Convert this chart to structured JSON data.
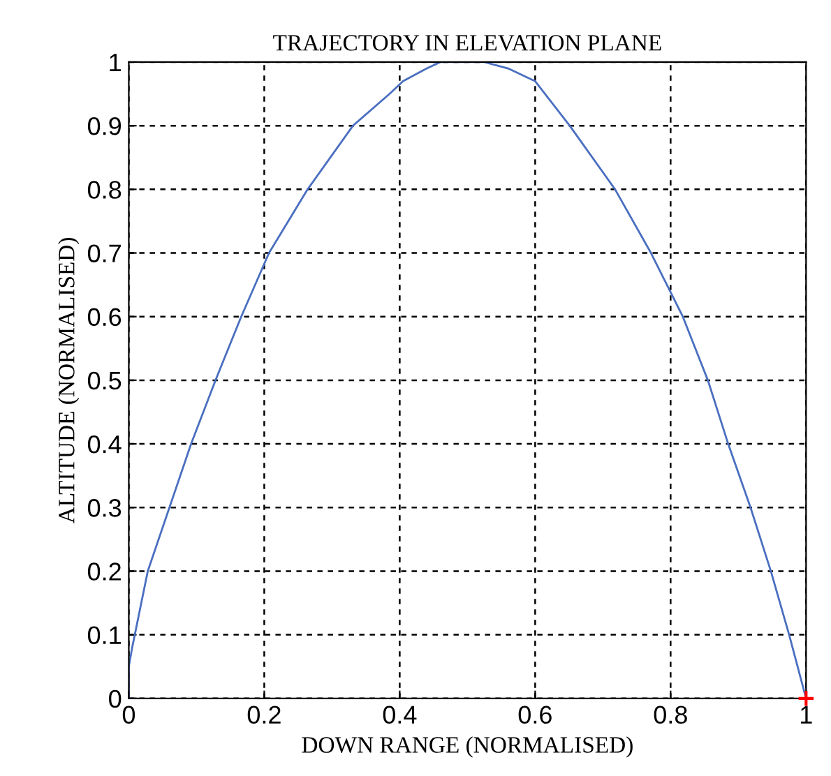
{
  "chart_data": {
    "type": "line",
    "title": "TRAJECTORY IN ELEVATION PLANE",
    "xlabel": "DOWN RANGE (NORMALISED)",
    "ylabel": "ALTITUDE (NORMALISED)",
    "xlim": [
      0,
      1
    ],
    "ylim": [
      0,
      1
    ],
    "xticks": [
      0,
      0.2,
      0.4,
      0.6,
      0.8,
      1
    ],
    "yticks": [
      0,
      0.1,
      0.2,
      0.3,
      0.4,
      0.5,
      0.6,
      0.7,
      0.8,
      0.9,
      1
    ],
    "grid": true,
    "line_style": "solid",
    "series": [
      {
        "color": "#4a6fc0",
        "x": [
          0,
          0,
          0.005,
          0.028,
          0.06,
          0.092,
          0.128,
          0.166,
          0.207,
          0.264,
          0.331,
          0.385,
          0.405,
          0.44,
          0.46,
          0.5,
          0.525,
          0.56,
          0.6,
          0.651,
          0.718,
          0.771,
          0.818,
          0.855,
          0.885,
          0.918,
          0.948,
          0.975,
          1
        ],
        "values": [
          0,
          0.05,
          0.08,
          0.2,
          0.3,
          0.4,
          0.5,
          0.6,
          0.7,
          0.8,
          0.9,
          0.95,
          0.97,
          0.99,
          1,
          1,
          1,
          0.99,
          0.97,
          0.9,
          0.8,
          0.7,
          0.6,
          0.5,
          0.4,
          0.3,
          0.2,
          0.1,
          0
        ]
      },
      {
        "type": "scatter",
        "marker": "cross",
        "color": "#ff0000",
        "x": [
          1
        ],
        "values": [
          0
        ]
      }
    ]
  }
}
